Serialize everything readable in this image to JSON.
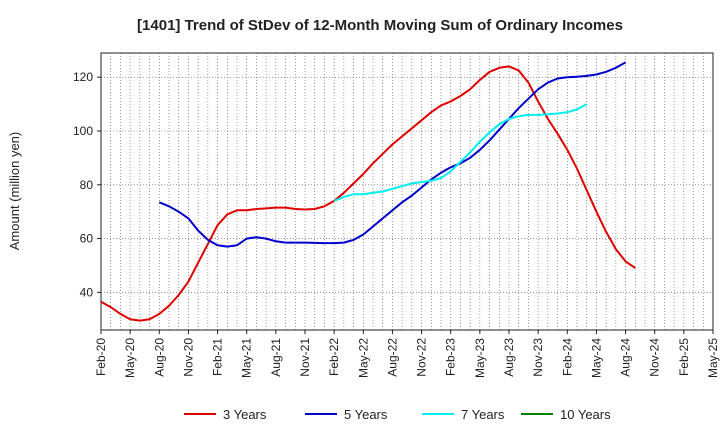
{
  "chart_data": {
    "type": "line",
    "title": "[1401]  Trend of StDev of 12-Month Moving Sum of Ordinary Incomes",
    "ylabel": "Amount (million yen)",
    "xlabel": "",
    "ylim": [
      26,
      129
    ],
    "yticks": [
      40,
      60,
      80,
      100,
      120
    ],
    "x_tick_labels": [
      "Feb-20",
      "May-20",
      "Aug-20",
      "Nov-20",
      "Feb-21",
      "May-21",
      "Aug-21",
      "Nov-21",
      "Feb-22",
      "May-22",
      "Aug-22",
      "Nov-22",
      "Feb-23",
      "May-23",
      "Aug-23",
      "Nov-23",
      "Feb-24",
      "May-24",
      "Aug-24",
      "Nov-24",
      "Feb-25",
      "May-25"
    ],
    "grid": true,
    "legend_position": "bottom",
    "series": [
      {
        "name": "3 Years",
        "color": "#e00000",
        "start_index": 0,
        "values": [
          36.5,
          34.5,
          32,
          30,
          29.5,
          30,
          32,
          35,
          39,
          44,
          51,
          58,
          65,
          69,
          70.5,
          70.5,
          71,
          71.2,
          71.5,
          71.5,
          71,
          70.8,
          71,
          72,
          74,
          77,
          80.5,
          84,
          88,
          91.5,
          95,
          98,
          101,
          104,
          107,
          109.5,
          111,
          113,
          115.5,
          119,
          122,
          123.5,
          124,
          122.5,
          118,
          111,
          104.5,
          99,
          93,
          86,
          78,
          70,
          62.5,
          56,
          51.5,
          49
        ]
      },
      {
        "name": "5 Years",
        "color": "#0000cc",
        "start_index": 6,
        "values": [
          73.5,
          72,
          70,
          67.5,
          63,
          59.5,
          57.5,
          57,
          57.5,
          60,
          60.5,
          60,
          59,
          58.5,
          58.5,
          58.5,
          58.4,
          58.3,
          58.3,
          58.5,
          59.5,
          61.5,
          64.5,
          67.5,
          70.5,
          73.5,
          76,
          79,
          82,
          84.5,
          86.5,
          88,
          90,
          93,
          96.5,
          100.5,
          104.5,
          108.5,
          112,
          115.5,
          118,
          119.5,
          120,
          120.2,
          120.5,
          121,
          122,
          123.5,
          125.5
        ]
      },
      {
        "name": "7 Years",
        "color": "#00eeee",
        "start_index": 24,
        "values": [
          74,
          75.5,
          76.5,
          76.5,
          77,
          77.5,
          78.5,
          79.5,
          80.5,
          81,
          81.5,
          82.5,
          85,
          88.5,
          92,
          96,
          99.5,
          102.5,
          104.5,
          105.5,
          106,
          106,
          106.2,
          106.5,
          107,
          108,
          110
        ]
      },
      {
        "name": "10 Years",
        "color": "#008000",
        "start_index": 0,
        "values": []
      }
    ]
  }
}
